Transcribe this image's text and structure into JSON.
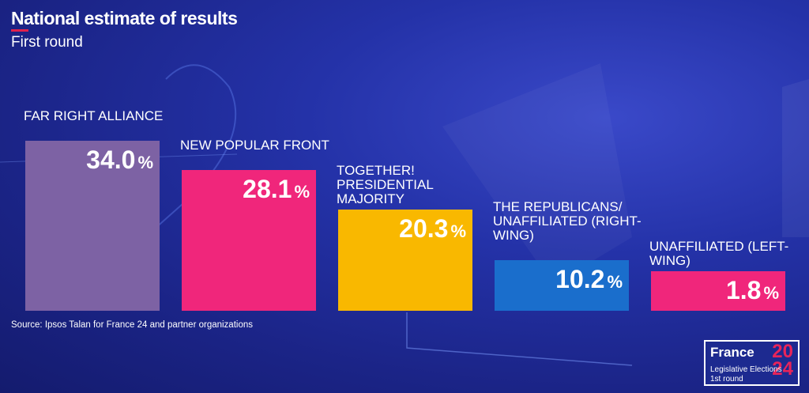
{
  "header": {
    "title": "National estimate of results",
    "subtitle": "First round"
  },
  "chart_data": {
    "type": "bar",
    "unit": "%",
    "categories": [
      "FAR RIGHT ALLIANCE",
      "NEW POPULAR FRONT",
      "TOGETHER! PRESIDENTIAL MAJORITY",
      "THE REPUBLICANS/ UNAFFILIATED (RIGHT-WING)",
      "UNAFFILIATED (LEFT-WING)"
    ],
    "values": [
      34.0,
      28.1,
      20.3,
      10.2,
      1.8
    ],
    "value_labels": [
      "34.0",
      "28.1",
      "20.3",
      "10.2",
      "1.8"
    ],
    "colors": [
      "#7d62a4",
      "#f0267b",
      "#f9b800",
      "#1a6ecc",
      "#f0267b"
    ],
    "ylim": [
      0,
      34.0
    ],
    "grid": false,
    "legend": "none"
  },
  "footer": {
    "source": "Source: Ipsos Talan for France 24 and partner organizations"
  },
  "logo": {
    "brand": "France",
    "year_top": "20",
    "year_bottom": "24",
    "line1": "Legislative Elections",
    "line2": "1st round"
  }
}
